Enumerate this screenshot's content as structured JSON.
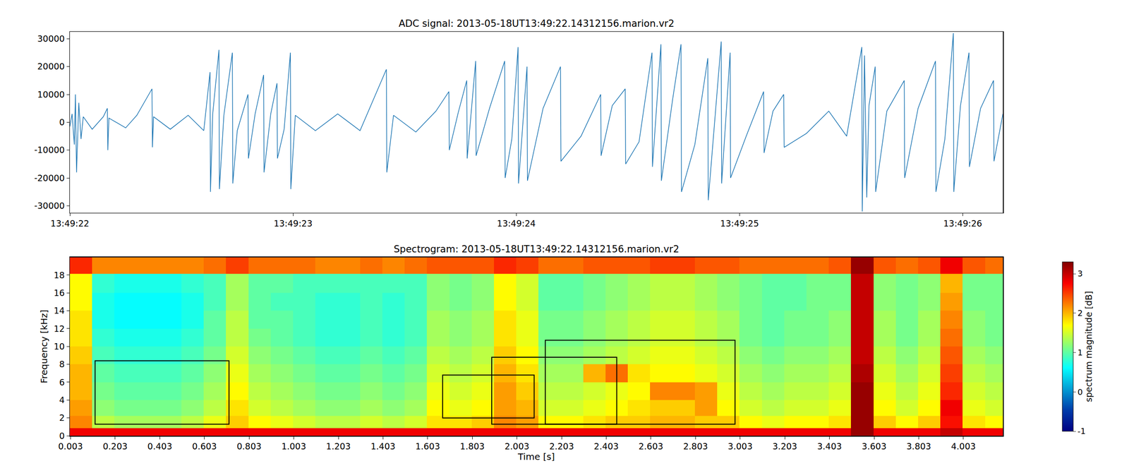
{
  "chart_data": [
    {
      "type": "line",
      "title": "ADC signal: 2013-05-18UT13:49:22.14312156.marion.vr2",
      "color": "#1f77b4",
      "x": [
        0.0,
        0.01,
        0.02,
        0.025,
        0.03,
        0.04,
        0.05,
        0.06,
        0.1,
        0.15,
        0.168,
        0.17,
        0.175,
        0.25,
        0.3,
        0.368,
        0.37,
        0.375,
        0.45,
        0.53,
        0.6,
        0.628,
        0.63,
        0.64,
        0.668,
        0.67,
        0.69,
        0.728,
        0.73,
        0.75,
        0.798,
        0.8,
        0.83,
        0.868,
        0.87,
        0.9,
        0.928,
        0.93,
        0.96,
        0.988,
        0.99,
        1.01,
        1.1,
        1.2,
        1.3,
        1.418,
        1.42,
        1.45,
        1.55,
        1.64,
        1.698,
        1.7,
        1.74,
        1.778,
        1.78,
        1.818,
        1.82,
        1.88,
        1.948,
        1.95,
        1.98,
        2.008,
        2.01,
        2.048,
        2.05,
        2.12,
        2.198,
        2.2,
        2.29,
        2.378,
        2.38,
        2.43,
        2.488,
        2.49,
        2.55,
        2.608,
        2.61,
        2.648,
        2.65,
        2.7,
        2.738,
        2.74,
        2.8,
        2.858,
        2.86,
        2.918,
        2.92,
        2.958,
        2.96,
        3.03,
        3.108,
        3.11,
        3.15,
        3.198,
        3.2,
        3.3,
        3.4,
        3.48,
        3.548,
        3.55,
        3.56,
        3.57,
        3.58,
        3.608,
        3.61,
        3.66,
        3.738,
        3.74,
        3.8,
        3.878,
        3.88,
        3.92,
        3.958,
        3.96,
        3.99,
        4.028,
        4.03,
        4.08,
        4.138,
        4.14,
        4.18
      ],
      "values": [
        -1500,
        3000,
        -8000,
        10000,
        -18000,
        7000,
        -6000,
        2000,
        -2500,
        2000,
        5000,
        -10000,
        1500,
        -2000,
        2500,
        12000,
        -9000,
        2000,
        -2500,
        2500,
        -3000,
        18000,
        -25000,
        3000,
        26000,
        -24000,
        2500,
        25000,
        -22000,
        -3000,
        10000,
        -13000,
        3000,
        17000,
        -18000,
        3000,
        14000,
        -13000,
        -2500,
        25000,
        -24000,
        2500,
        -3000,
        3000,
        -3000,
        19000,
        -18000,
        2500,
        -3500,
        4000,
        11000,
        -10000,
        3500,
        15000,
        -13000,
        22000,
        -12000,
        5000,
        22000,
        -20000,
        -6000,
        27000,
        -22000,
        20000,
        -21000,
        5000,
        20000,
        -14000,
        -5000,
        10000,
        -12000,
        6000,
        12000,
        -15000,
        -7000,
        25000,
        -16000,
        28000,
        -21000,
        8000,
        28000,
        -25000,
        -8000,
        23000,
        -28000,
        29000,
        -22000,
        25000,
        -20000,
        -5000,
        11000,
        -11000,
        4000,
        10000,
        -9000,
        -4000,
        4000,
        -5000,
        27000,
        -32000,
        24000,
        -27000,
        6000,
        20000,
        -25000,
        4000,
        15000,
        -20000,
        5000,
        22000,
        -25000,
        -6000,
        32000,
        -25000,
        6000,
        25000,
        -16000,
        5000,
        15000,
        -14000,
        3000
      ],
      "xlim": [
        0,
        4.18
      ],
      "xticks": [
        {
          "value": 0,
          "label": "13:49:22"
        },
        {
          "value": 1,
          "label": "13:49:23"
        },
        {
          "value": 2,
          "label": "13:49:24"
        },
        {
          "value": 3,
          "label": "13:49:25"
        },
        {
          "value": 4,
          "label": "13:49:26"
        }
      ],
      "ylim": [
        -32500,
        32500
      ],
      "yticks": [
        -30000,
        -20000,
        -10000,
        0,
        10000,
        20000,
        30000
      ]
    },
    {
      "type": "heatmap",
      "title": "Spectrogram: 2013-05-18UT13:49:22.14312156.marion.vr2",
      "x_label": "Time [s]",
      "y_label": "Frequency [kHz]",
      "x": [
        0.05,
        0.15,
        0.25,
        0.35,
        0.45,
        0.55,
        0.65,
        0.75,
        0.85,
        0.95,
        1.05,
        1.15,
        1.25,
        1.35,
        1.45,
        1.55,
        1.65,
        1.75,
        1.85,
        1.95,
        2.05,
        2.15,
        2.25,
        2.35,
        2.45,
        2.55,
        2.65,
        2.75,
        2.85,
        2.95,
        3.05,
        3.15,
        3.25,
        3.35,
        3.45,
        3.55,
        3.65,
        3.75,
        3.85,
        3.95,
        4.05,
        4.15
      ],
      "y": [
        0.25,
        1.5,
        3,
        5,
        7,
        9,
        11,
        13,
        15,
        17,
        19.25
      ],
      "cells": [
        [
          2.8,
          2.8,
          2.8,
          2.8,
          2.8,
          2.8,
          2.8,
          2.8,
          2.8,
          2.8,
          2.8,
          2.8,
          2.8,
          2.8,
          2.8,
          2.8,
          2.8,
          2.8,
          2.8,
          2.8,
          2.8,
          2.8,
          2.8,
          2.8,
          2.8,
          2.8,
          2.8,
          2.8,
          2.8,
          2.8,
          2.8,
          2.8,
          2.8,
          2.8,
          2.8,
          3.2,
          2.8,
          2.8,
          2.8,
          3.0,
          2.8,
          2.8
        ],
        [
          2.2,
          1.4,
          1.3,
          1.3,
          1.3,
          1.4,
          1.6,
          1.9,
          1.7,
          1.6,
          1.5,
          1.4,
          1.4,
          1.5,
          1.4,
          1.5,
          1.8,
          1.8,
          1.9,
          2.2,
          2.1,
          1.7,
          1.7,
          1.8,
          1.9,
          1.9,
          2.0,
          2.0,
          1.9,
          1.9,
          1.7,
          1.6,
          1.7,
          1.7,
          1.8,
          3.2,
          1.9,
          1.7,
          1.9,
          2.7,
          1.8,
          1.7
        ],
        [
          2.1,
          1.2,
          1.1,
          1.1,
          1.1,
          1.2,
          1.4,
          1.8,
          1.5,
          1.4,
          1.3,
          1.2,
          1.2,
          1.3,
          1.2,
          1.3,
          1.7,
          1.6,
          1.7,
          2.1,
          2.0,
          1.5,
          1.5,
          1.6,
          1.7,
          1.8,
          1.9,
          1.9,
          2.1,
          1.7,
          1.5,
          1.4,
          1.5,
          1.5,
          1.6,
          3.2,
          1.7,
          1.5,
          1.7,
          2.8,
          1.6,
          1.5
        ],
        [
          2.0,
          1.1,
          1.0,
          1.0,
          1.0,
          1.1,
          1.3,
          1.7,
          1.4,
          1.3,
          1.2,
          1.1,
          1.1,
          1.2,
          1.1,
          1.2,
          1.6,
          1.5,
          1.6,
          2.1,
          1.9,
          1.4,
          1.4,
          1.5,
          1.6,
          1.7,
          2.2,
          2.2,
          2.1,
          1.6,
          1.4,
          1.3,
          1.4,
          1.4,
          1.5,
          3.2,
          1.6,
          1.4,
          1.6,
          2.6,
          1.5,
          1.4
        ],
        [
          2.0,
          1.0,
          0.9,
          0.9,
          0.9,
          1.0,
          1.2,
          1.6,
          1.3,
          1.2,
          1.1,
          1.0,
          1.0,
          1.1,
          1.0,
          1.1,
          1.5,
          1.4,
          1.5,
          2.0,
          1.8,
          1.3,
          1.3,
          2.0,
          2.3,
          1.8,
          1.7,
          1.7,
          1.6,
          1.5,
          1.3,
          1.2,
          1.3,
          1.3,
          1.4,
          3.1,
          1.5,
          1.3,
          1.5,
          2.5,
          1.4,
          1.3
        ],
        [
          1.9,
          0.9,
          0.8,
          0.8,
          0.8,
          0.9,
          1.1,
          1.5,
          1.2,
          1.1,
          1.0,
          0.9,
          0.9,
          1.0,
          0.9,
          1.0,
          1.4,
          1.3,
          1.4,
          1.9,
          1.7,
          1.2,
          1.2,
          1.3,
          1.4,
          1.5,
          1.6,
          1.6,
          1.5,
          1.4,
          1.2,
          1.1,
          1.2,
          1.2,
          1.3,
          3.0,
          1.4,
          1.2,
          1.4,
          2.4,
          1.3,
          1.2
        ],
        [
          1.8,
          0.8,
          0.7,
          0.7,
          0.7,
          0.8,
          1.0,
          1.4,
          1.1,
          1.0,
          0.9,
          0.8,
          0.8,
          0.9,
          0.8,
          0.9,
          1.3,
          1.2,
          1.3,
          1.8,
          1.6,
          1.1,
          1.1,
          1.2,
          1.3,
          1.4,
          1.5,
          1.5,
          1.4,
          1.3,
          1.1,
          1.0,
          1.1,
          1.1,
          1.2,
          3.0,
          1.3,
          1.1,
          1.3,
          2.3,
          1.2,
          1.1
        ],
        [
          1.8,
          0.7,
          0.6,
          0.6,
          0.6,
          0.7,
          1.0,
          1.4,
          1.0,
          1.0,
          0.9,
          0.8,
          0.8,
          0.9,
          0.8,
          0.9,
          1.3,
          1.2,
          1.3,
          1.8,
          1.6,
          1.1,
          1.1,
          1.2,
          1.3,
          1.4,
          1.5,
          1.5,
          1.4,
          1.3,
          1.1,
          1.0,
          1.1,
          1.1,
          1.2,
          3.0,
          1.3,
          1.1,
          1.3,
          2.2,
          1.2,
          1.1
        ],
        [
          1.7,
          0.7,
          0.6,
          0.6,
          0.6,
          0.7,
          0.9,
          1.3,
          1.0,
          0.9,
          0.9,
          0.8,
          0.8,
          0.9,
          0.8,
          0.9,
          1.2,
          1.1,
          1.2,
          1.7,
          1.5,
          1.0,
          1.0,
          1.1,
          1.2,
          1.3,
          1.4,
          1.4,
          1.3,
          1.2,
          1.1,
          1.0,
          1.0,
          1.1,
          1.1,
          3.0,
          1.2,
          1.1,
          1.2,
          2.1,
          1.1,
          1.1
        ],
        [
          1.7,
          0.8,
          0.7,
          0.7,
          0.7,
          0.8,
          0.9,
          1.3,
          1.0,
          1.0,
          0.9,
          0.9,
          0.9,
          0.9,
          0.9,
          0.9,
          1.2,
          1.1,
          1.2,
          1.7,
          1.5,
          1.0,
          1.0,
          1.1,
          1.2,
          1.3,
          1.4,
          1.4,
          1.3,
          1.2,
          1.1,
          1.0,
          1.0,
          1.1,
          1.1,
          3.0,
          1.2,
          1.1,
          1.2,
          2.0,
          1.1,
          1.1
        ],
        [
          2.6,
          2.2,
          2.2,
          2.2,
          2.2,
          2.2,
          2.3,
          2.5,
          2.3,
          2.3,
          2.3,
          2.2,
          2.2,
          2.3,
          2.2,
          2.3,
          2.4,
          2.4,
          2.4,
          2.6,
          2.5,
          2.3,
          2.3,
          2.4,
          2.4,
          2.4,
          2.5,
          2.5,
          2.4,
          2.4,
          2.3,
          2.3,
          2.3,
          2.3,
          2.4,
          3.2,
          2.4,
          2.3,
          2.4,
          2.8,
          2.4,
          2.3
        ]
      ],
      "xlim": [
        0,
        4.18
      ],
      "xticks": [
        0.003,
        0.203,
        0.403,
        0.603,
        0.803,
        1.003,
        1.203,
        1.403,
        1.603,
        1.803,
        2.003,
        2.203,
        2.403,
        2.603,
        2.803,
        3.003,
        3.203,
        3.403,
        3.603,
        3.803,
        4.003
      ],
      "ylim": [
        0,
        20
      ],
      "yticks": [
        0,
        2,
        4,
        6,
        8,
        10,
        12,
        14,
        16,
        18
      ],
      "colorbar": {
        "label": "spectrum magnitude [dB]",
        "range": [
          -1,
          3.3
        ],
        "ticks": [
          -1,
          0,
          1,
          2,
          3
        ]
      },
      "boxes": [
        {
          "x0": 0.113,
          "x1": 0.713,
          "y0": 1.3,
          "y1": 8.4
        },
        {
          "x0": 1.67,
          "x1": 2.08,
          "y0": 2.0,
          "y1": 6.8
        },
        {
          "x0": 1.89,
          "x1": 2.45,
          "y0": 1.3,
          "y1": 8.8
        },
        {
          "x0": 2.13,
          "x1": 2.98,
          "y0": 1.3,
          "y1": 10.7
        }
      ]
    }
  ]
}
